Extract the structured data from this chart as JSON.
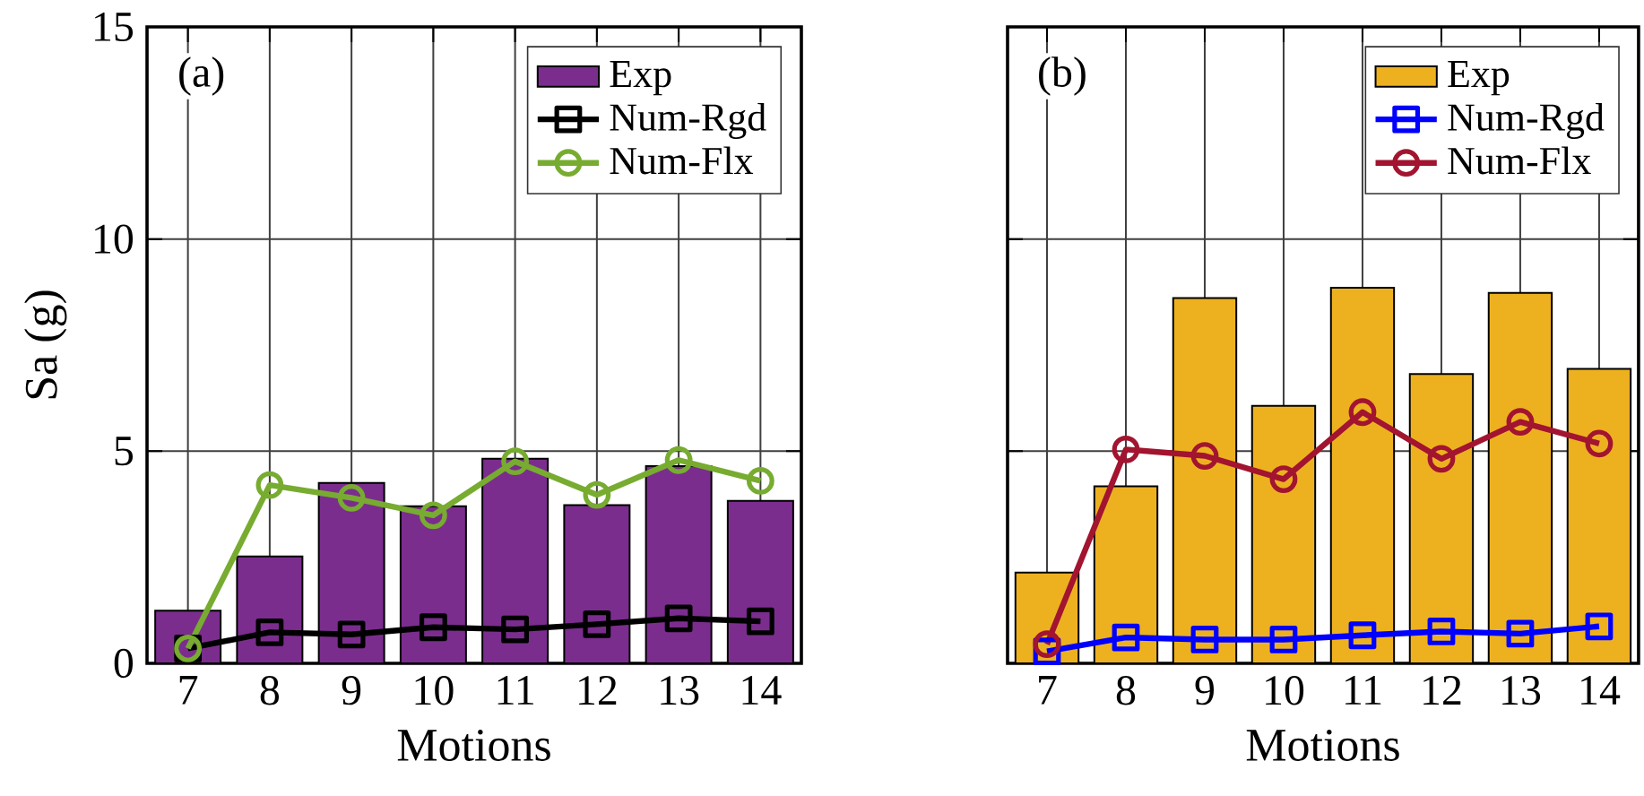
{
  "chart_data": [
    {
      "type": "bar",
      "categories": [
        "7",
        "8",
        "9",
        "10",
        "11",
        "12",
        "13",
        "14"
      ],
      "xlabel": "Motions",
      "ylabel": "Sa (g)",
      "ylim": [
        0,
        15
      ],
      "yticks": [
        0,
        5,
        10,
        15
      ],
      "grid": true,
      "legend": "top right",
      "annotations": [
        "(a)"
      ],
      "series": [
        {
          "name": "Exp",
          "color": "#7b2d8e",
          "values": [
            1.24,
            2.52,
            4.25,
            3.7,
            4.82,
            3.73,
            4.65,
            3.83
          ]
        },
        {
          "name": "Num-Rgd",
          "type": "line",
          "marker": "square",
          "color": "#000000",
          "values": [
            0.35,
            0.73,
            0.68,
            0.85,
            0.8,
            0.92,
            1.06,
            0.99
          ]
        },
        {
          "name": "Num-Flx",
          "type": "line",
          "marker": "circle",
          "color": "#77ac30",
          "values": [
            0.35,
            4.2,
            3.9,
            3.49,
            4.76,
            3.97,
            4.79,
            4.3
          ]
        }
      ]
    },
    {
      "type": "bar",
      "categories": [
        "7",
        "8",
        "9",
        "10",
        "11",
        "12",
        "13",
        "14"
      ],
      "xlabel": "Motions",
      "ylim": [
        0,
        15
      ],
      "yticks": [
        0,
        5,
        10,
        15
      ],
      "tick_labels": "x",
      "grid": true,
      "legend": "top right",
      "annotations": [
        "(b)"
      ],
      "series": [
        {
          "name": "Exp",
          "color": "#edb120",
          "values": [
            2.14,
            4.17,
            8.61,
            6.07,
            8.85,
            6.82,
            8.73,
            6.94
          ]
        },
        {
          "name": "Num-Rgd",
          "type": "line",
          "marker": "square",
          "color": "#0000ff",
          "values": [
            0.28,
            0.61,
            0.56,
            0.56,
            0.66,
            0.75,
            0.7,
            0.87
          ]
        },
        {
          "name": "Num-Flx",
          "type": "line",
          "marker": "circle",
          "color": "#a2142f",
          "values": [
            0.45,
            5.04,
            4.89,
            4.34,
            5.92,
            4.82,
            5.69,
            5.18
          ]
        }
      ]
    }
  ]
}
